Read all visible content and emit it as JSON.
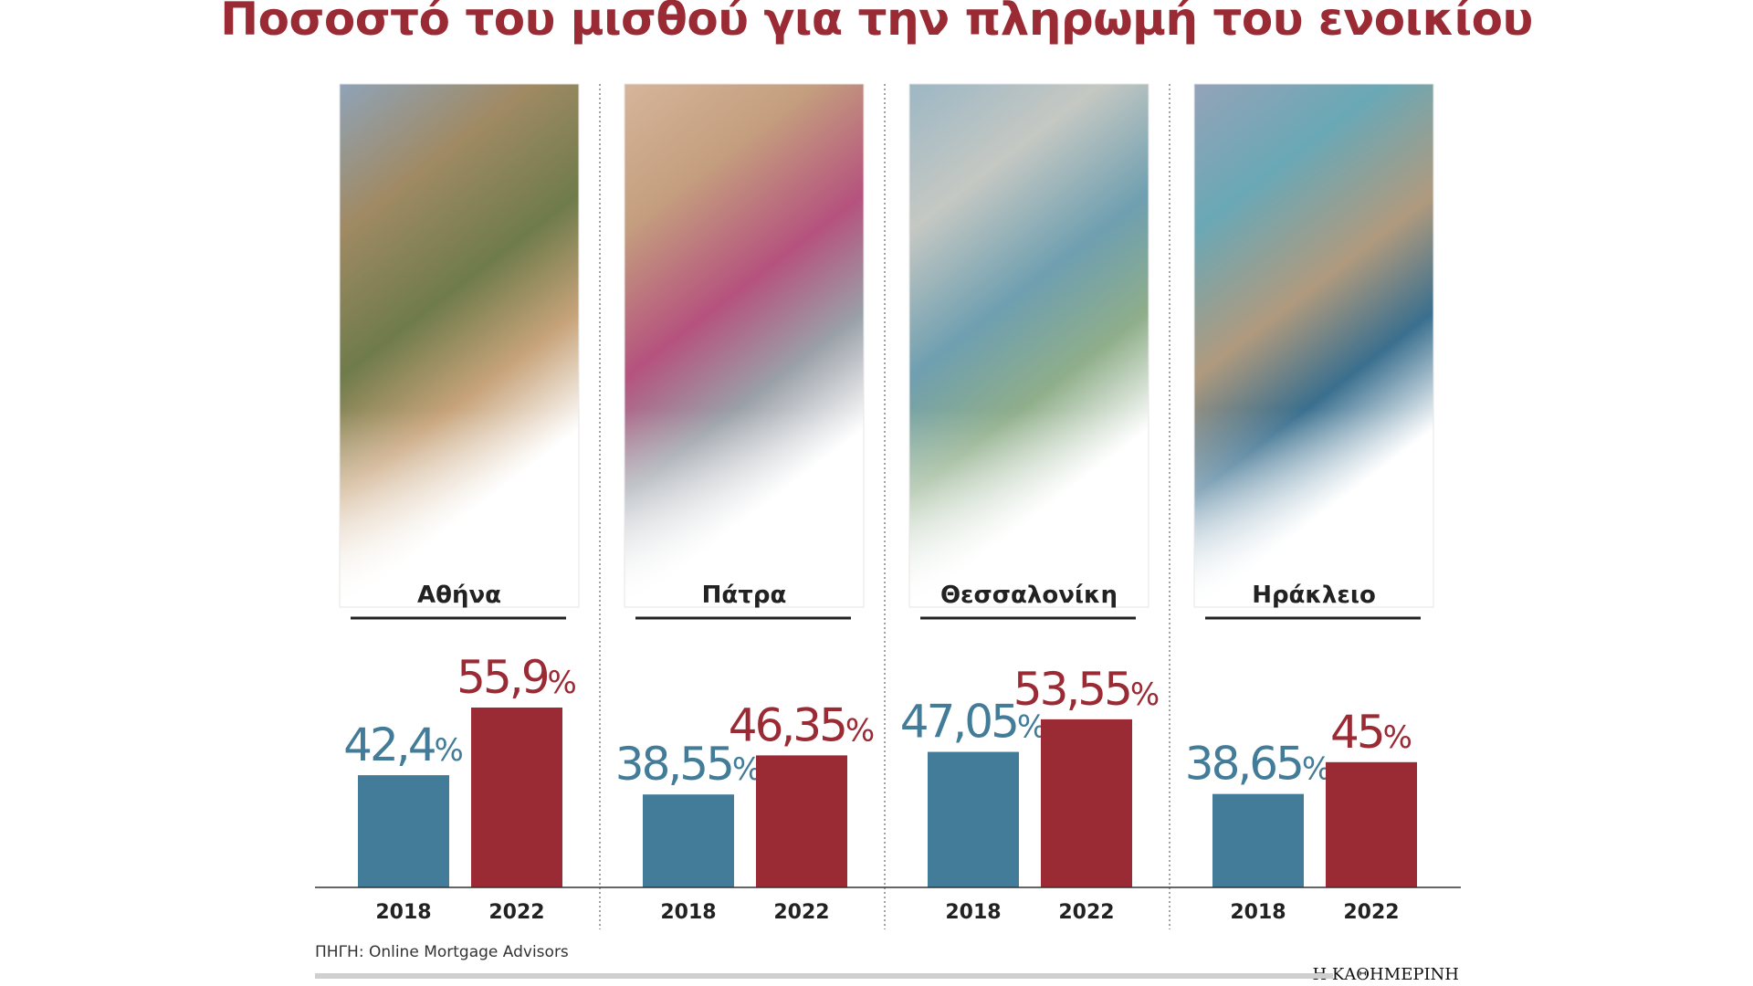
{
  "chart_data": {
    "type": "bar",
    "title": "Ποσοστό του μισθού για την πληρωμή του ενοικίου",
    "categories": [
      "Αθήνα",
      "Πάτρα",
      "Θεσσαλονίκη",
      "Ηράκλειο"
    ],
    "x": [
      "2018",
      "2022"
    ],
    "series": [
      {
        "name": "2018",
        "values": [
          42.4,
          38.55,
          47.05,
          38.65
        ],
        "labels": [
          "42,4",
          "38,55",
          "47,05",
          "38,65"
        ]
      },
      {
        "name": "2022",
        "values": [
          55.9,
          46.35,
          53.55,
          45
        ],
        "labels": [
          "55,9",
          "46,35",
          "53,55",
          "45"
        ]
      }
    ],
    "unit": "%",
    "ylim": [
      20,
      60
    ],
    "colors": {
      "2018": "#437c98",
      "2022": "#9a2a33"
    },
    "grid": false,
    "legend": "none"
  },
  "footer": {
    "source": "ΠΗΓΗ: Online Mortgage Advisors",
    "brand": "Η ΚΑΘΗΜΕΡΙΝΗ"
  }
}
